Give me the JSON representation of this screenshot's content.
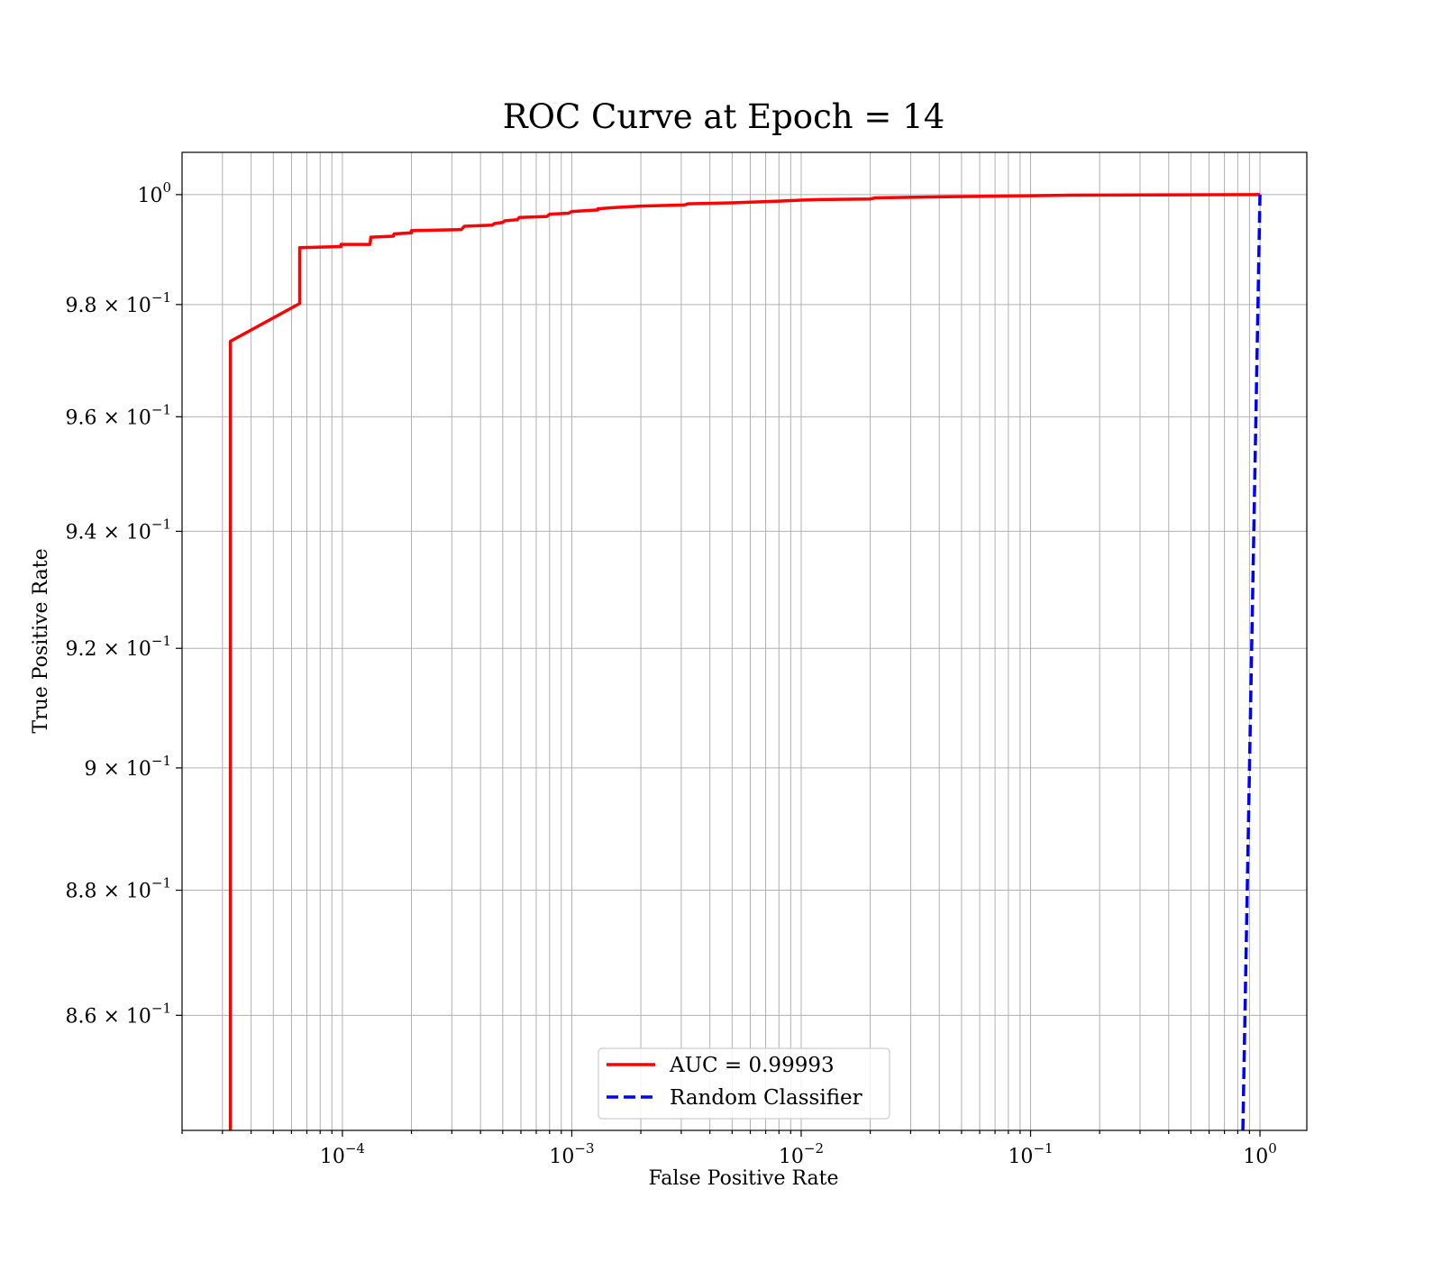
{
  "chart_data": {
    "type": "line",
    "title": "ROC Curve at Epoch = 14",
    "xlabel": "False Positive Rate",
    "ylabel": "True Positive Rate",
    "xscale": "log",
    "yscale": "log",
    "xlim": [
      2e-05,
      1.6
    ],
    "ylim": [
      0.842,
      1.0078
    ],
    "grid": true,
    "legend_position": "lower-center",
    "x_major_ticks": [
      {
        "base": "10",
        "exp": "−4",
        "value": 0.0001
      },
      {
        "base": "10",
        "exp": "−3",
        "value": 0.001
      },
      {
        "base": "10",
        "exp": "−2",
        "value": 0.01
      },
      {
        "base": "10",
        "exp": "−1",
        "value": 0.1
      },
      {
        "base": "10",
        "exp": "0",
        "value": 1
      }
    ],
    "y_ticks": [
      {
        "mant": "",
        "base": "10",
        "exp": "0",
        "value": 1.0
      },
      {
        "mant": "9.8 × ",
        "base": "10",
        "exp": "−1",
        "value": 0.98
      },
      {
        "mant": "9.6 × ",
        "base": "10",
        "exp": "−1",
        "value": 0.96
      },
      {
        "mant": "9.4 × ",
        "base": "10",
        "exp": "−1",
        "value": 0.94
      },
      {
        "mant": "9.2 × ",
        "base": "10",
        "exp": "−1",
        "value": 0.92
      },
      {
        "mant": "9 × ",
        "base": "10",
        "exp": "−1",
        "value": 0.9
      },
      {
        "mant": "8.8 × ",
        "base": "10",
        "exp": "−1",
        "value": 0.88
      },
      {
        "mant": "8.6 × ",
        "base": "10",
        "exp": "−1",
        "value": 0.86
      }
    ],
    "series": [
      {
        "name": "AUC = 0.99993",
        "color": "#ff0000",
        "dash": "solid",
        "x": [
          3.25e-05,
          3.25e-05,
          3.25e-05,
          3.25e-05,
          6.52e-05,
          6.52e-05,
          6.52e-05,
          9.87e-05,
          9.87e-05,
          0.000132,
          0.000133,
          0.000167,
          0.000168,
          0.0002,
          0.0002,
          0.00033,
          0.00034,
          0.00045,
          0.00046,
          0.0005,
          0.00051,
          0.00058,
          0.00059,
          0.00078,
          0.0008,
          0.00097,
          0.001,
          0.0013,
          0.0013,
          0.0015,
          0.002,
          0.0031,
          0.0032,
          0.005,
          0.008,
          0.01,
          0.012,
          0.02,
          0.021,
          0.04,
          0.1,
          0.15,
          1.0
        ],
        "y": [
          0.842,
          0.85,
          0.9,
          0.9734,
          0.9802,
          0.988,
          0.9903,
          0.9905,
          0.9909,
          0.9909,
          0.9922,
          0.9924,
          0.9928,
          0.993,
          0.9934,
          0.9936,
          0.9942,
          0.9944,
          0.9947,
          0.9949,
          0.9952,
          0.9954,
          0.9958,
          0.996,
          0.9964,
          0.9966,
          0.9969,
          0.9972,
          0.9974,
          0.9976,
          0.9979,
          0.9981,
          0.9983,
          0.9985,
          0.9988,
          0.999,
          0.9991,
          0.9992,
          0.9994,
          0.9996,
          0.9998,
          0.9999,
          1.0
        ]
      },
      {
        "name": "Random Classifier",
        "color": "#0000ff",
        "dash": "dashed",
        "x": [
          0.842,
          1.0
        ],
        "y": [
          0.842,
          1.0
        ]
      }
    ]
  }
}
